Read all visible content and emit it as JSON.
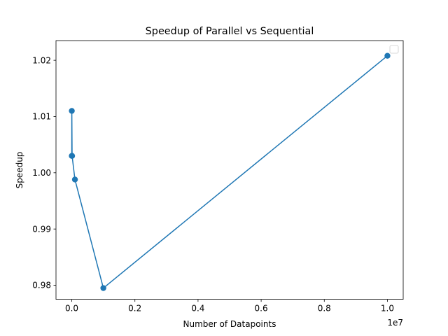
{
  "chart_data": {
    "type": "line",
    "title": "Speedup of Parallel vs Sequential",
    "xlabel": "Number of Datapoints",
    "ylabel": "Speedup",
    "x_offset_label": "1e7",
    "x_scale_multiplier": 10000000,
    "xlim": [
      -500000,
      10500000
    ],
    "ylim": [
      0.9775,
      1.0235
    ],
    "x_ticks": [
      0,
      2000000,
      4000000,
      6000000,
      8000000,
      10000000
    ],
    "x_tick_labels": [
      "0.0",
      "0.2",
      "0.4",
      "0.6",
      "0.8",
      "1.0"
    ],
    "y_ticks": [
      0.98,
      0.99,
      1.0,
      1.01,
      1.02
    ],
    "y_tick_labels": [
      "0.98",
      "0.99",
      "1.00",
      "1.01",
      "1.02"
    ],
    "grid": false,
    "legend": "top-right (empty)",
    "series": [
      {
        "color": "#1f77b4",
        "marker": "circle",
        "x": [
          100,
          1000,
          10000,
          100000,
          1000000,
          10000000
        ],
        "y": [
          1.003,
          1.011,
          1.003,
          0.9988,
          0.9795,
          1.0208
        ]
      }
    ]
  }
}
